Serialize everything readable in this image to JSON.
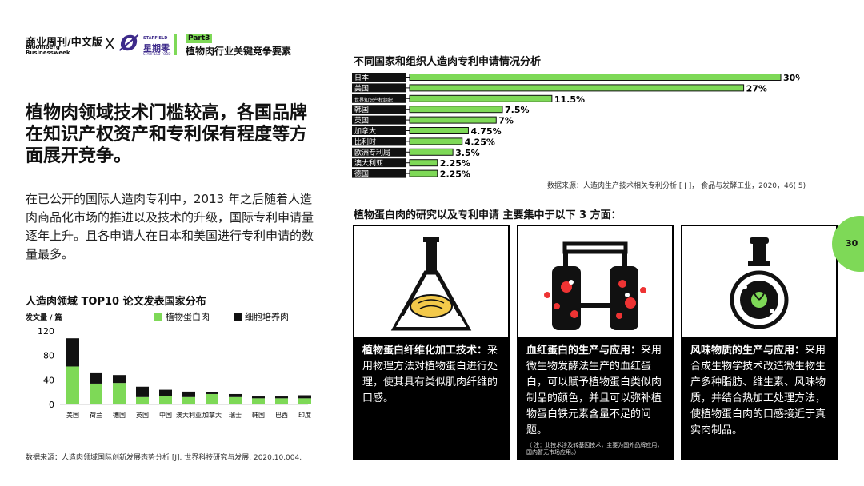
{
  "header": {
    "brand_cn": "商业周刊/中文版",
    "brand_en": "Bloomberg Businessweek",
    "x_mark": "X",
    "partner_logo": "Ø",
    "partner_en": "STARFIELD",
    "partner_cn": "星期零",
    "partner_sub": "STARFIELD FOOD",
    "part_badge": "Part3",
    "part_title": "植物肉行业关键竞争要素"
  },
  "headline": "植物肉领域技术门槛较高，各国品牌在知识产权资产和专利保有程度等方面展开竞争。",
  "body": "在已公开的国际人造肉专利中，2013 年之后随着人造肉商品化市场的推进以及技术的升级，国际专利申请量逐年上升。且各申请人在日本和美国进行专利申请的数量最多。",
  "chart1_meta": {
    "title": "人造肉领域 TOP10 论文发表国家分布",
    "unit": "发文量 / 篇",
    "source": "数据来源：人造肉领域国际创新发展态势分析 [J]. 世界科技研究与发展. 2020.10.004."
  },
  "chart2_meta": {
    "title": "不同国家和组织人造肉专利申请情况分析",
    "source": "数据来源：人造肉生产技术相关专利分析 [ J ]， 食品与发酵工业，2020，46( 5)"
  },
  "section": {
    "title": "植物蛋白肉的研究以及专利申请  主要集中于以下 3 方面："
  },
  "cards": [
    {
      "bold": "植物蛋白纤维化加工技术：",
      "text": "采用物理方法对植物蛋白进行处理，使其具有类似肌肉纤维的口感。",
      "note": "",
      "icon": "flask-icon"
    },
    {
      "bold": "血红蛋白的生产与应用：",
      "text": "采用微生物发酵法生产的血红蛋白，可以赋予植物蛋白类似肉制品的颜色，并且可以弥补植物蛋白铁元素含量不足的问题。",
      "note": "（ 注：此技术涉及转基因技术，主要为国外品牌应用，国内暂无市场应用。）",
      "icon": "bioreactor-icon"
    },
    {
      "bold": "风味物质的生产与应用：",
      "text": "采用合成生物学技术改造微生物生产多种脂肪、维生素、风味物质，并结合热加工处理方法，使植物蛋白肉的口感接近于真实肉制品。",
      "note": "",
      "icon": "bottle-icon"
    }
  ],
  "page_number": "30",
  "colors": {
    "accent": "#7ed957",
    "dark": "#111111"
  },
  "chart_data": [
    {
      "type": "bar",
      "stacked": true,
      "title": "人造肉领域 TOP10 论文发表国家分布",
      "ylabel": "发文量 / 篇",
      "ylim": [
        0,
        120
      ],
      "yticks": [
        0,
        40,
        80,
        120
      ],
      "categories": [
        "美国",
        "荷兰",
        "德国",
        "英国",
        "中国",
        "澳大利亚",
        "加拿大",
        "瑞士",
        "韩国",
        "巴西",
        "印度"
      ],
      "series": [
        {
          "name": "植物蛋白肉",
          "color": "#7ed957",
          "values": [
            62,
            34,
            35,
            12,
            14,
            12,
            17,
            12,
            10,
            10,
            10
          ]
        },
        {
          "name": "细胞培养肉",
          "color": "#111111",
          "values": [
            46,
            17,
            13,
            17,
            10,
            9,
            3,
            5,
            3,
            3,
            5
          ]
        }
      ],
      "legend": "top-right"
    },
    {
      "type": "bar",
      "orientation": "horizontal",
      "title": "不同国家和组织人造肉专利申请情况分析",
      "categories": [
        "日本",
        "美国",
        "世界知识产权组织",
        "韩国",
        "英国",
        "加拿大",
        "比利时",
        "欧洲专利局",
        "澳大利亚",
        "德国"
      ],
      "values": [
        30,
        27,
        11.5,
        7.5,
        7,
        4.75,
        4.25,
        3.5,
        2.25,
        2.25
      ],
      "labels": [
        "30%",
        "27%",
        "11.5%",
        "7.5%",
        "7%",
        "4.75%",
        "4.25%",
        "3.5%",
        "2.25%",
        "2.25%"
      ],
      "xlim": [
        0,
        30
      ]
    }
  ]
}
